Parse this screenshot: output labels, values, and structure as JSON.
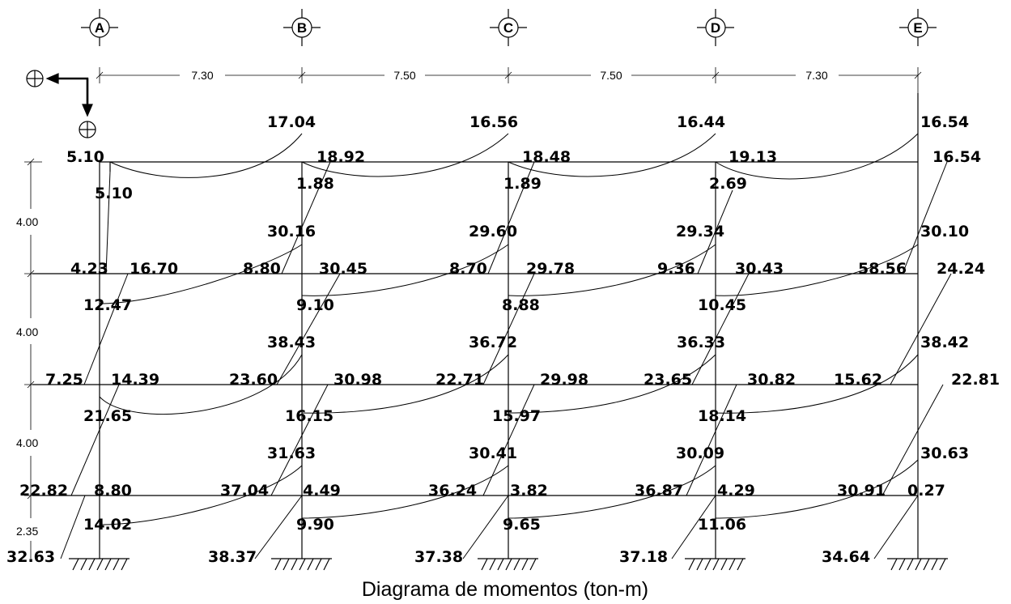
{
  "caption": "Diagrama de momentos (ton-m)",
  "axes": [
    "A",
    "B",
    "C",
    "D",
    "E"
  ],
  "spans": [
    "7.30",
    "7.50",
    "7.50",
    "7.30"
  ],
  "storey_heights": [
    "4.00",
    "4.00",
    "4.00",
    "2.35"
  ],
  "beam_moments": {
    "level_1": {
      "top": [
        "5.10",
        "17.04",
        "16.56",
        "16.44",
        "16.54"
      ],
      "right": [
        "18.92",
        "18.48",
        "19.13",
        "16.54"
      ],
      "midspan": [
        "5.10",
        "1.88",
        "1.89",
        "2.69"
      ]
    },
    "level_2": {
      "top": [
        "30.16",
        "29.60",
        "29.34",
        "30.10"
      ],
      "left": [
        "4.23",
        "8.80",
        "8.70",
        "9.36",
        "58.56"
      ],
      "right": [
        "16.70",
        "30.45",
        "29.78",
        "30.43",
        "24.24"
      ],
      "midspan": [
        "12.47",
        "9.10",
        "8.88",
        "10.45"
      ]
    },
    "level_3": {
      "top": [
        "38.43",
        "36.72",
        "36.33",
        "38.42"
      ],
      "left": [
        "7.25",
        "23.60",
        "22.71",
        "23.65",
        "15.62"
      ],
      "right": [
        "14.39",
        "30.98",
        "29.98",
        "30.82",
        "22.81"
      ],
      "midspan": [
        "21.65",
        "16.15",
        "15.97",
        "18.14"
      ]
    },
    "level_4": {
      "top": [
        "31.63",
        "30.41",
        "30.09",
        "30.63"
      ],
      "left": [
        "22.82",
        "37.04",
        "36.24",
        "36.87",
        "30.91"
      ],
      "right": [
        "8.80",
        "4.49",
        "3.82",
        "4.29",
        "0.27"
      ],
      "midspan": [
        "14.02",
        "9.90",
        "9.65",
        "11.06"
      ]
    },
    "base": [
      "32.63",
      "38.37",
      "37.38",
      "37.18",
      "34.64"
    ]
  }
}
